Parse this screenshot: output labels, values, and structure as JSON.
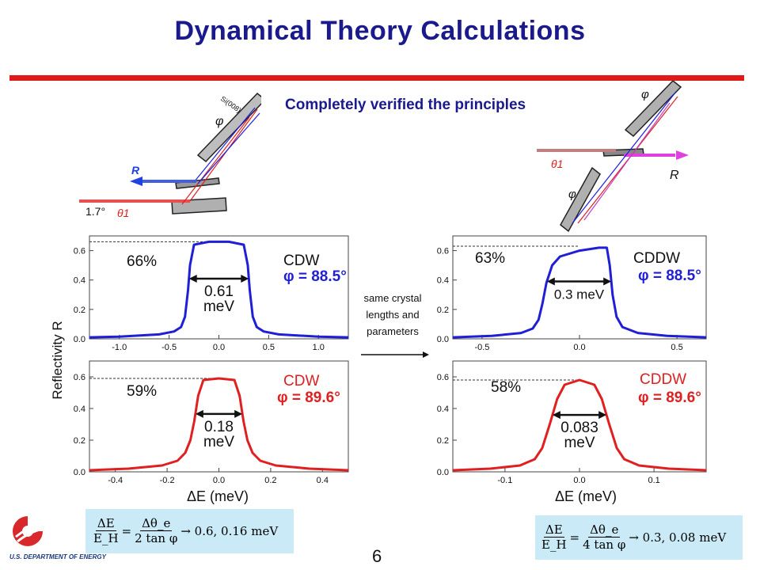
{
  "slide": {
    "title": "Dynamical Theory Calculations",
    "subtitle": "Completely verified the principles",
    "middle_note": [
      "same crystal",
      "lengths and",
      "parameters"
    ],
    "page_number": "6",
    "accent_color": "#e01919",
    "title_color": "#1a1a8c",
    "logo_text": "U.S. DEPARTMENT OF ENERGY"
  },
  "diagrams": {
    "left": {
      "angle_label": "1.7°",
      "theta_label": "θ1",
      "phi_label": "φ",
      "r_label": "R",
      "crystal_label": "Si(008)"
    },
    "right": {
      "theta_label": "θ1",
      "phi_label": "φ",
      "r_label": "R"
    }
  },
  "y_axis_label": "Reflectivity R",
  "x_axis_label": "ΔE (meV)",
  "formulas": {
    "left": {
      "num": "ΔE",
      "den": "E_H",
      "rhs_num": "Δθ_e",
      "rhs_den": "2 tan φ",
      "result": "→ 0.6,  0.16 meV"
    },
    "right": {
      "num": "ΔE",
      "den": "E_H",
      "rhs_num": "Δθ_e",
      "rhs_den": "4 tan φ",
      "result": "→ 0.3,  0.08 meV"
    }
  },
  "chart_data": [
    {
      "type": "line",
      "panel": "top-left",
      "color": "#1f1fd6",
      "xlim": [
        -1.3,
        1.3
      ],
      "ylim": [
        0,
        0.7
      ],
      "xticks": [
        "-1.0",
        "-0.5",
        "0.0",
        "0.5",
        "1.0"
      ],
      "yticks": [
        "0.0",
        "0.2",
        "0.4",
        "0.6"
      ],
      "peak": 0.66,
      "peak_label": "66%",
      "width_label": [
        "0.61",
        "meV"
      ],
      "name": "CDW",
      "phi_label": "φ = 88.5°",
      "x": [
        -1.3,
        -1.0,
        -0.6,
        -0.45,
        -0.38,
        -0.34,
        -0.31,
        -0.29,
        -0.25,
        -0.1,
        0.1,
        0.25,
        0.29,
        0.31,
        0.34,
        0.38,
        0.45,
        0.6,
        1.0,
        1.3
      ],
      "y": [
        0.01,
        0.015,
        0.03,
        0.05,
        0.08,
        0.15,
        0.33,
        0.5,
        0.64,
        0.66,
        0.66,
        0.64,
        0.5,
        0.33,
        0.15,
        0.08,
        0.05,
        0.03,
        0.015,
        0.01
      ]
    },
    {
      "type": "line",
      "panel": "bottom-left",
      "color": "#e02020",
      "xlim": [
        -0.5,
        0.5
      ],
      "ylim": [
        0,
        0.7
      ],
      "xticks": [
        "-0.4",
        "-0.2",
        "0.0",
        "0.2",
        "0.4"
      ],
      "yticks": [
        "0.0",
        "0.2",
        "0.4",
        "0.6"
      ],
      "peak": 0.59,
      "peak_label": "59%",
      "width_label": [
        "0.18",
        "meV"
      ],
      "name": "CDW",
      "phi_label": "φ = 89.6°",
      "x": [
        -0.5,
        -0.35,
        -0.22,
        -0.16,
        -0.13,
        -0.11,
        -0.095,
        -0.08,
        -0.06,
        0.0,
        0.06,
        0.08,
        0.095,
        0.11,
        0.13,
        0.16,
        0.22,
        0.35,
        0.5
      ],
      "y": [
        0.01,
        0.02,
        0.04,
        0.07,
        0.12,
        0.2,
        0.32,
        0.48,
        0.58,
        0.59,
        0.58,
        0.48,
        0.32,
        0.2,
        0.12,
        0.07,
        0.04,
        0.02,
        0.01
      ]
    },
    {
      "type": "line",
      "panel": "top-right",
      "color": "#1f1fd6",
      "xlim": [
        -0.65,
        0.65
      ],
      "ylim": [
        0,
        0.7
      ],
      "xticks": [
        "-0.5",
        "0.0",
        "0.5"
      ],
      "yticks": [
        "0.0",
        "0.2",
        "0.4",
        "0.6"
      ],
      "peak": 0.63,
      "peak_label": "63%",
      "width_label": [
        "0.3 meV"
      ],
      "name": "CDDW",
      "phi_label": "φ = 88.5°",
      "x": [
        -0.65,
        -0.45,
        -0.3,
        -0.24,
        -0.21,
        -0.19,
        -0.17,
        -0.14,
        -0.1,
        0.0,
        0.1,
        0.14,
        0.155,
        0.17,
        0.19,
        0.22,
        0.3,
        0.45,
        0.65
      ],
      "y": [
        0.01,
        0.02,
        0.04,
        0.07,
        0.13,
        0.24,
        0.38,
        0.5,
        0.56,
        0.6,
        0.62,
        0.62,
        0.5,
        0.3,
        0.15,
        0.08,
        0.04,
        0.02,
        0.01
      ]
    },
    {
      "type": "line",
      "panel": "bottom-right",
      "color": "#e02020",
      "xlim": [
        -0.17,
        0.17
      ],
      "ylim": [
        0,
        0.7
      ],
      "xticks": [
        "-0.1",
        "0.0",
        "0.1"
      ],
      "yticks": [
        "0.0",
        "0.2",
        "0.4",
        "0.6"
      ],
      "peak": 0.58,
      "peak_label": "58%",
      "width_label": [
        "0.083",
        "meV"
      ],
      "name": "CDDW",
      "phi_label": "φ = 89.6°",
      "x": [
        -0.17,
        -0.12,
        -0.08,
        -0.06,
        -0.05,
        -0.04,
        -0.03,
        -0.02,
        0.0,
        0.02,
        0.03,
        0.04,
        0.05,
        0.06,
        0.08,
        0.12,
        0.17
      ],
      "y": [
        0.01,
        0.02,
        0.04,
        0.08,
        0.15,
        0.3,
        0.46,
        0.55,
        0.58,
        0.55,
        0.46,
        0.3,
        0.15,
        0.08,
        0.04,
        0.02,
        0.01
      ]
    }
  ]
}
